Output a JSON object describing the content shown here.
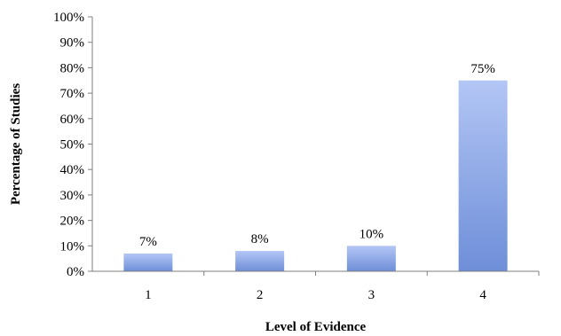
{
  "chart_data": {
    "type": "bar",
    "categories": [
      "1",
      "2",
      "3",
      "4"
    ],
    "values": [
      7,
      8,
      10,
      75
    ],
    "value_labels": [
      "7%",
      "8%",
      "10%",
      "75%"
    ],
    "xlabel": "Level of Evidence",
    "ylabel": "Percentage of Studies",
    "ylim": [
      0,
      100
    ],
    "yticks": [
      0,
      10,
      20,
      30,
      40,
      50,
      60,
      70,
      80,
      90,
      100
    ],
    "ytick_labels": [
      "0%",
      "10%",
      "20%",
      "30%",
      "40%",
      "50%",
      "60%",
      "70%",
      "80%",
      "90%",
      "100%"
    ],
    "grid": false,
    "legend": "none",
    "colors": {
      "bar_light": "#b3c6f5",
      "bar_dark": "#6e8ed8",
      "axis": "#7f7f7f"
    }
  }
}
